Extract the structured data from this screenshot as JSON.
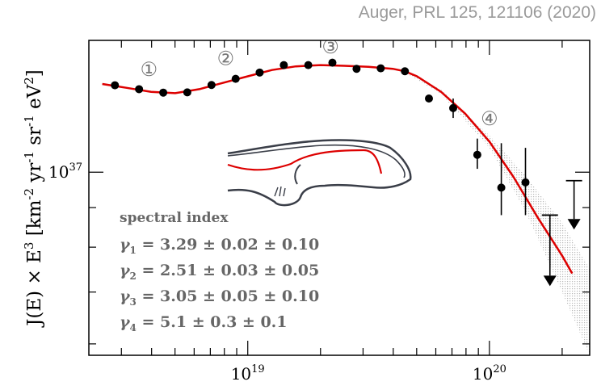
{
  "citation": "Auger, PRL 125, 121106 (2020)",
  "chart_data": {
    "type": "scatter",
    "x_scale": "log",
    "y_scale": "log",
    "xlim": [
      2.2e+18,
      2.6e+20
    ],
    "ylim": [
      5.8e+36,
      1.48e+37
    ],
    "ylabel_parts": [
      "J(E) × E",
      "3",
      " [km",
      "-2",
      " yr",
      "-1",
      " sr",
      "-1",
      " eV",
      "2",
      "]"
    ],
    "x_ticks": [
      {
        "value": 1e+19,
        "base": "10",
        "exp": "19"
      },
      {
        "value": 1e+20,
        "base": "10",
        "exp": "20"
      }
    ],
    "y_ticks": [
      {
        "value": 1e+37,
        "base": "10",
        "exp": "37"
      }
    ],
    "points": [
      {
        "x": 2.82e+18,
        "y": 1.295e+37
      },
      {
        "x": 3.55e+18,
        "y": 1.28e+37
      },
      {
        "x": 4.47e+18,
        "y": 1.267e+37
      },
      {
        "x": 5.62e+18,
        "y": 1.268e+37
      },
      {
        "x": 7.08e+18,
        "y": 1.296e+37
      },
      {
        "x": 8.91e+18,
        "y": 1.32e+37
      },
      {
        "x": 1.12e+19,
        "y": 1.345e+37
      },
      {
        "x": 1.41e+19,
        "y": 1.375e+37
      },
      {
        "x": 1.78e+19,
        "y": 1.375e+37
      },
      {
        "x": 2.24e+19,
        "y": 1.385e+37
      },
      {
        "x": 2.82e+19,
        "y": 1.36e+37
      },
      {
        "x": 3.55e+19,
        "y": 1.362e+37
      },
      {
        "x": 4.47e+19,
        "y": 1.35e+37
      },
      {
        "x": 5.62e+19,
        "y": 1.245e+37
      },
      {
        "x": 7.08e+19,
        "y": 1.21e+37,
        "yerr_low": 1.175e+37,
        "yerr_high": 1.245e+37
      },
      {
        "x": 8.91e+19,
        "y": 1.053e+37,
        "yerr_low": 1.01e+37,
        "yerr_high": 1.105e+37
      },
      {
        "x": 1.12e+20,
        "y": 9.55e+36,
        "yerr_low": 8.8e+36,
        "yerr_high": 1.09e+37
      },
      {
        "x": 1.41e+20,
        "y": 9.7e+36,
        "yerr_low": 8.8e+36,
        "yerr_high": 1.075e+37
      }
    ],
    "upper_limits": [
      {
        "x": 1.78e+20,
        "y": 8.8e+36,
        "marker": 7.35e+36
      },
      {
        "x": 2.24e+20,
        "y": 9.75e+36,
        "marker": 8.7e+36
      }
    ],
    "fit_curve": [
      [
        2.5e+18,
        1.3e+37
      ],
      [
        3.16e+18,
        1.285e+37
      ],
      [
        3.98e+18,
        1.27e+37
      ],
      [
        5.01e+18,
        1.265e+37
      ],
      [
        6.31e+18,
        1.28e+37
      ],
      [
        7.94e+18,
        1.305e+37
      ],
      [
        1e+19,
        1.33e+37
      ],
      [
        1.26e+19,
        1.355e+37
      ],
      [
        1.58e+19,
        1.37e+37
      ],
      [
        2e+19,
        1.375e+37
      ],
      [
        2.51e+19,
        1.372e+37
      ],
      [
        3.16e+19,
        1.368e+37
      ],
      [
        3.98e+19,
        1.36e+37
      ],
      [
        4.47e+19,
        1.35e+37
      ],
      [
        5.01e+19,
        1.33e+37
      ],
      [
        6.31e+19,
        1.27e+37
      ],
      [
        7.94e+19,
        1.19e+37
      ],
      [
        1e+20,
        1.095e+37
      ],
      [
        1.26e+20,
        9.85e+36
      ],
      [
        1.58e+20,
        8.75e+36
      ],
      [
        2e+20,
        7.8e+36
      ],
      [
        2.2e+20,
        7.4e+36
      ]
    ],
    "fit_band": {
      "x": [
        4.47e+19,
        6.31e+19,
        1e+20,
        1.41e+20,
        2e+20,
        2.6e+20
      ],
      "lower": [
        1.345e+37,
        1.262e+37,
        1.075e+37,
        8.9e+36,
        7e+36,
        5.8e+36
      ],
      "upper": [
        1.355e+37,
        1.278e+37,
        1.115e+37,
        9.9e+36,
        8.6e+36,
        7.5e+36
      ]
    },
    "fit_color": "#dd0000",
    "marker_color": "#000000",
    "band_color": "#b8b8b8",
    "region_labels": [
      {
        "text": "①",
        "x": 3.9e+18,
        "y": 1.332e+37
      },
      {
        "text": "②",
        "x": 8.1e+18,
        "y": 1.375e+37
      },
      {
        "text": "③",
        "x": 2.2e+19,
        "y": 1.425e+37
      },
      {
        "text": "④",
        "x": 1e+20,
        "y": 1.15e+37
      }
    ],
    "annotation": {
      "title": "spectral index",
      "lines": [
        {
          "sym": "γ",
          "sub": "1",
          "value": " = 3.29 ± 0.02 ± 0.10"
        },
        {
          "sym": "γ",
          "sub": "2",
          "value": " = 2.51 ± 0.03 ± 0.05"
        },
        {
          "sym": "γ",
          "sub": "3",
          "value": " = 3.05 ± 0.05 ± 0.10"
        },
        {
          "sym": "γ",
          "sub": "4",
          "value": " = 5.1 ± 0.3 ± 0.1"
        }
      ],
      "color": "#666666"
    }
  }
}
